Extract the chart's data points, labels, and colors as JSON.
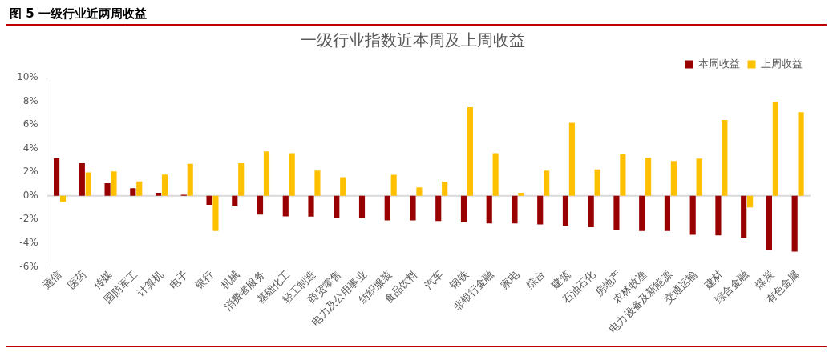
{
  "chart_data": {
    "type": "bar",
    "title": "一级行业指数近本周及上周收益",
    "subtitle": "图 5 一级行业近两周收益",
    "categories": [
      "通信",
      "医药",
      "传媒",
      "国防军工",
      "计算机",
      "电子",
      "银行",
      "机械",
      "消费者服务",
      "基础化工",
      "轻工制造",
      "商贸零售",
      "电力及公用事业",
      "纺织服装",
      "食品饮料",
      "汽车",
      "钢铁",
      "非银行金融",
      "家电",
      "综合",
      "建筑",
      "石油石化",
      "房地产",
      "农林牧渔",
      "电力设备及新能源",
      "交通运输",
      "建材",
      "综合金融",
      "煤炭",
      "有色金属"
    ],
    "series": [
      {
        "name": "本周收益",
        "color": "#990000",
        "values": [
          3.19,
          2.76,
          1.07,
          0.64,
          0.26,
          0.08,
          -0.76,
          -0.9,
          -1.59,
          -1.74,
          -1.76,
          -1.85,
          -1.89,
          -2.08,
          -2.08,
          -2.13,
          -2.24,
          -2.33,
          -2.33,
          -2.42,
          -2.54,
          -2.65,
          -2.93,
          -2.98,
          -2.98,
          -3.3,
          -3.35,
          -3.55,
          -4.57,
          -4.72
        ]
      },
      {
        "name": "上周收益",
        "color": "#ffc000",
        "values": [
          -0.5,
          1.98,
          2.07,
          1.22,
          1.8,
          2.71,
          -2.98,
          2.76,
          3.75,
          3.6,
          2.13,
          1.58,
          null,
          1.77,
          0.72,
          1.2,
          7.5,
          3.6,
          0.26,
          2.13,
          6.18,
          2.23,
          3.5,
          3.22,
          2.94,
          3.14,
          6.42,
          -0.98,
          7.97,
          7.07
        ]
      }
    ],
    "ylim": [
      -6,
      10
    ],
    "yticks": [
      {
        "value": -6,
        "label": "-6%"
      },
      {
        "value": -4,
        "label": "-4%"
      },
      {
        "value": -2,
        "label": "-2%"
      },
      {
        "value": 0,
        "label": "0%"
      },
      {
        "value": 2,
        "label": "2%"
      },
      {
        "value": 4,
        "label": "4%"
      },
      {
        "value": 6,
        "label": "6%"
      },
      {
        "value": 8,
        "label": "8%"
      },
      {
        "value": 10,
        "label": "10%"
      }
    ],
    "grid": false,
    "ref_lines": [
      {
        "axis": "y",
        "value": 0,
        "color": "#d9d9d9"
      }
    ],
    "legend": "top right"
  }
}
